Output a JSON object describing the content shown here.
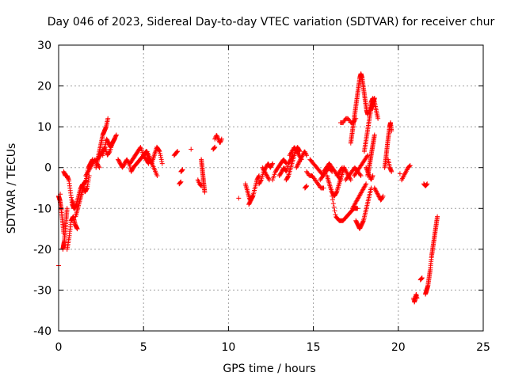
{
  "chart_data": {
    "type": "scatter",
    "title": "Day 046 of 2023, Sidereal Day-to-day VTEC variation (SDTVAR) for receiver chur",
    "xlabel": "GPS time / hours",
    "ylabel": "SDTVAR / TECUs",
    "xlim": [
      0,
      25
    ],
    "ylim": [
      -40,
      30
    ],
    "xticks": [
      0,
      5,
      10,
      15,
      20,
      25
    ],
    "xtick_labels": [
      "0",
      "5",
      "10",
      "15",
      "20",
      "25"
    ],
    "yticks": [
      -40,
      -30,
      -20,
      -10,
      0,
      10,
      20,
      30
    ],
    "ytick_labels": [
      "-40",
      "-30",
      "-20",
      "-10",
      "0",
      "10",
      "20",
      "30"
    ],
    "grid": true,
    "marker": "+",
    "series": [
      {
        "name": "SDTVAR",
        "color": "#ff0000",
        "segments": [
          {
            "x0": 0.0,
            "x1": 0.3,
            "y": [
              -7,
              -8,
              -10,
              -13,
              -16
            ]
          },
          {
            "x0": 0.25,
            "x1": 0.5,
            "y": [
              -20,
              -18,
              -14,
              -10
            ]
          },
          {
            "x0": 0.3,
            "x1": 0.9,
            "y": [
              -1,
              -2,
              -2,
              -3,
              -6,
              -9,
              -10
            ]
          },
          {
            "x0": 0.5,
            "x1": 1.1,
            "y": [
              -20,
              -17,
              -13,
              -12,
              -14,
              -15
            ]
          },
          {
            "x0": 0.8,
            "x1": 1.8,
            "y": [
              -8,
              -10,
              -9,
              -7,
              -5,
              -4,
              -6,
              -5,
              -2
            ]
          },
          {
            "x0": 1.0,
            "x1": 2.0,
            "y": [
              -12,
              -10,
              -8,
              -6,
              -4,
              -3,
              0,
              1,
              2
            ]
          },
          {
            "x0": 1.6,
            "x1": 2.4,
            "y": [
              -2,
              -1,
              0,
              1,
              2,
              1,
              0
            ]
          },
          {
            "x0": 2.2,
            "x1": 2.9,
            "y": [
              0,
              2,
              4,
              6,
              8,
              9,
              10,
              12
            ]
          },
          {
            "x0": 2.3,
            "x1": 3.3,
            "y": [
              2,
              3,
              4,
              5,
              3,
              4,
              6,
              7
            ]
          },
          {
            "x0": 2.6,
            "x1": 3.4,
            "y": [
              3,
              5,
              7,
              6,
              5,
              6,
              7,
              8
            ]
          },
          {
            "x0": 3.5,
            "x1": 4.4,
            "y": [
              2,
              1,
              0,
              1,
              2,
              1,
              -1,
              0
            ]
          },
          {
            "x0": 4.2,
            "x1": 5.3,
            "y": [
              1,
              2,
              3,
              4,
              5,
              3,
              2,
              1
            ]
          },
          {
            "x0": 4.4,
            "x1": 5.8,
            "y": [
              0,
              1,
              2,
              3,
              4,
              2,
              0,
              -2
            ]
          },
          {
            "x0": 5.0,
            "x1": 6.1,
            "y": [
              3,
              4,
              2,
              1,
              3,
              5,
              4,
              1
            ]
          },
          {
            "x0": 6.8,
            "x1": 7.0,
            "y": [
              3,
              3.5,
              4
            ]
          },
          {
            "x0": 7.1,
            "x1": 7.2,
            "y": [
              -4,
              -3.5
            ]
          },
          {
            "x0": 7.2,
            "x1": 7.3,
            "y": [
              -1,
              -0.5
            ]
          },
          {
            "x0": 7.8,
            "x1": 7.8,
            "y": [
              4.5
            ]
          },
          {
            "x0": 8.2,
            "x1": 8.4,
            "y": [
              -3,
              -4,
              -4.5
            ]
          },
          {
            "x0": 8.4,
            "x1": 8.6,
            "y": [
              2,
              0,
              -2,
              -4,
              -6
            ]
          },
          {
            "x0": 9.2,
            "x1": 9.6,
            "y": [
              7,
              8,
              7,
              6,
              7
            ]
          },
          {
            "x0": 9.1,
            "x1": 9.2,
            "y": [
              4.5,
              5
            ]
          },
          {
            "x0": 10.6,
            "x1": 10.6,
            "y": [
              -7.5
            ]
          },
          {
            "x0": 11.0,
            "x1": 11.4,
            "y": [
              -4,
              -6,
              -8,
              -7
            ]
          },
          {
            "x0": 11.2,
            "x1": 11.8,
            "y": [
              -9,
              -8,
              -7,
              -5,
              -3,
              -2
            ]
          },
          {
            "x0": 11.8,
            "x1": 12.6,
            "y": [
              -4,
              -3,
              -1,
              0,
              1,
              0,
              1
            ]
          },
          {
            "x0": 12.0,
            "x1": 12.4,
            "y": [
              0,
              -1,
              -2,
              -3
            ]
          },
          {
            "x0": 12.6,
            "x1": 13.4,
            "y": [
              -3,
              -1,
              0,
              1,
              2,
              1
            ]
          },
          {
            "x0": 13.0,
            "x1": 13.8,
            "y": [
              -2,
              -1,
              0,
              -1,
              1,
              2,
              3
            ]
          },
          {
            "x0": 13.4,
            "x1": 14.2,
            "y": [
              -3,
              -2,
              0,
              2,
              4,
              5,
              4
            ]
          },
          {
            "x0": 13.6,
            "x1": 14.3,
            "y": [
              3,
              4,
              5,
              4,
              3,
              2
            ]
          },
          {
            "x0": 14.0,
            "x1": 14.6,
            "y": [
              0,
              1,
              2,
              3,
              4,
              3
            ]
          },
          {
            "x0": 14.5,
            "x1": 14.6,
            "y": [
              -5,
              -4.5
            ]
          },
          {
            "x0": 14.6,
            "x1": 15.6,
            "y": [
              -1,
              -2,
              -2,
              -3,
              -4,
              -5,
              -5
            ]
          },
          {
            "x0": 14.8,
            "x1": 15.6,
            "y": [
              2,
              1,
              0,
              -1,
              -2
            ]
          },
          {
            "x0": 15.4,
            "x1": 16.1,
            "y": [
              -3,
              -2,
              -1,
              0,
              -1
            ]
          },
          {
            "x0": 15.6,
            "x1": 16.6,
            "y": [
              -1,
              0,
              1,
              0,
              -1,
              -2,
              -3
            ]
          },
          {
            "x0": 15.8,
            "x1": 16.8,
            "y": [
              -2,
              -4,
              -6,
              -7,
              -6,
              -4,
              -2,
              0
            ]
          },
          {
            "x0": 16.1,
            "x1": 17.6,
            "y": [
              -7,
              -12,
              -13,
              -13,
              -12,
              -11,
              -10,
              -10
            ]
          },
          {
            "x0": 16.4,
            "x1": 16.7,
            "y": [
              -2,
              -1,
              0
            ]
          },
          {
            "x0": 16.6,
            "x1": 17.5,
            "y": [
              11,
              11,
              12,
              12,
              11,
              11,
              12
            ]
          },
          {
            "x0": 16.8,
            "x1": 17.2,
            "y": [
              0,
              -1,
              -2,
              -3
            ]
          },
          {
            "x0": 16.9,
            "x1": 17.8,
            "y": [
              -3,
              -2,
              -1,
              0,
              -1,
              -2
            ]
          },
          {
            "x0": 17.2,
            "x1": 18.2,
            "y": [
              6,
              8,
              10,
              12,
              14,
              16,
              18,
              20,
              22,
              23,
              22,
              20,
              18,
              16,
              14,
              13
            ]
          },
          {
            "x0": 17.3,
            "x1": 18.1,
            "y": [
              -10,
              -9,
              -8,
              -7,
              -6,
              -5,
              -4
            ]
          },
          {
            "x0": 17.4,
            "x1": 18.2,
            "y": [
              -2,
              -1,
              0,
              1,
              2,
              3
            ]
          },
          {
            "x0": 17.5,
            "x1": 18.4,
            "y": [
              -13,
              -14,
              -15,
              -14,
              -13,
              -11,
              -9,
              -7,
              -5
            ]
          },
          {
            "x0": 18.0,
            "x1": 18.6,
            "y": [
              4,
              6,
              8,
              10,
              12,
              14,
              15,
              16,
              17
            ]
          },
          {
            "x0": 18.1,
            "x1": 18.5,
            "y": [
              0,
              -1,
              -2,
              -3,
              -2
            ]
          },
          {
            "x0": 18.2,
            "x1": 18.6,
            "y": [
              -2,
              0,
              2,
              4,
              6,
              8
            ]
          },
          {
            "x0": 18.3,
            "x1": 18.8,
            "y": [
              14,
              16,
              17,
              16,
              14,
              12
            ]
          },
          {
            "x0": 18.6,
            "x1": 19.1,
            "y": [
              -5,
              -6,
              -7,
              -8,
              -7
            ]
          },
          {
            "x0": 19.2,
            "x1": 19.6,
            "y": [
              0,
              2,
              4,
              6,
              8,
              10,
              11,
              9
            ]
          },
          {
            "x0": 19.4,
            "x1": 19.6,
            "y": [
              2,
              0,
              -1
            ]
          },
          {
            "x0": 20.1,
            "x1": 20.1,
            "y": [
              -1.5
            ]
          },
          {
            "x0": 20.2,
            "x1": 20.7,
            "y": [
              -3,
              -2,
              -1,
              0,
              0.5
            ]
          },
          {
            "x0": 20.9,
            "x1": 21.1,
            "y": [
              -32,
              -33,
              -32,
              -31,
              -32
            ]
          },
          {
            "x0": 21.3,
            "x1": 21.4,
            "y": [
              -27.5,
              -27
            ]
          },
          {
            "x0": 21.5,
            "x1": 21.7,
            "y": [
              -4,
              -4.5,
              -4
            ]
          },
          {
            "x0": 21.6,
            "x1": 22.3,
            "y": [
              -31,
              -30,
              -29,
              -27,
              -25,
              -22,
              -20,
              -18,
              -16,
              -14,
              -12
            ]
          }
        ],
        "points": [
          [
            0.0,
            -24
          ],
          [
            0.1,
            -6.5
          ]
        ]
      }
    ]
  }
}
